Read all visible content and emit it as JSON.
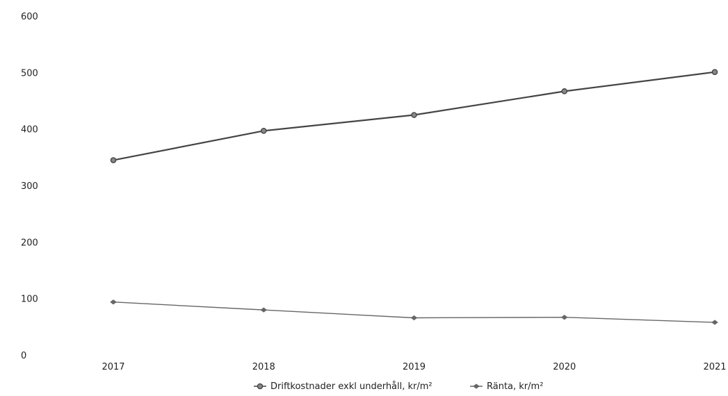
{
  "chart_data": {
    "type": "line",
    "categories": [
      "2017",
      "2018",
      "2019",
      "2020",
      "2021"
    ],
    "series": [
      {
        "name": "Driftkostnader exkl underhåll, kr/m²",
        "values": [
          346,
          398,
          426,
          468,
          502
        ],
        "color": "#444444",
        "marker": "circle"
      },
      {
        "name": "Ränta, kr/m²",
        "values": [
          95,
          81,
          67,
          68,
          59
        ],
        "color": "#666666",
        "marker": "diamond"
      }
    ],
    "y_ticks": [
      "0",
      "100",
      "200",
      "300",
      "400",
      "500",
      "600"
    ],
    "ylim": [
      0,
      600
    ],
    "title": "",
    "xlabel": "",
    "ylabel": "",
    "grid": false,
    "legend_position": "bottom-center"
  }
}
